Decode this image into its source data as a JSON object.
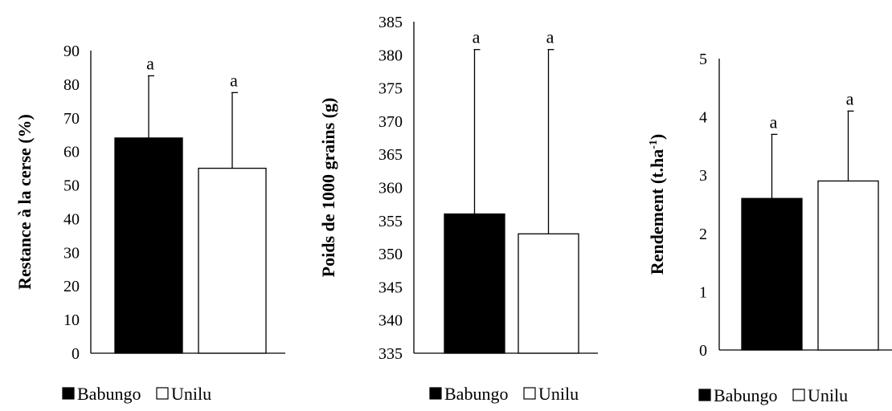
{
  "chart_data": [
    {
      "type": "bar",
      "ylabel": "Restance à la cerse (%)",
      "ylim": [
        0,
        90
      ],
      "yticks": [
        "0",
        "10",
        "20",
        "30",
        "40",
        "50",
        "60",
        "70",
        "80",
        "90"
      ],
      "grid": false,
      "legend_position": "bottom",
      "series": [
        {
          "name": "Babungo",
          "value": 64,
          "error": 18.5,
          "significance": "a",
          "color": "#000000"
        },
        {
          "name": "Unilu",
          "value": 55,
          "error": 22.5,
          "significance": "a",
          "color": "#ffffff"
        }
      ]
    },
    {
      "type": "bar",
      "ylabel": "Poids de 1000 grains (g)",
      "ylim": [
        335,
        385
      ],
      "yticks": [
        "335",
        "340",
        "345",
        "350",
        "355",
        "360",
        "365",
        "370",
        "375",
        "380",
        "385"
      ],
      "grid": false,
      "legend_position": "bottom",
      "series": [
        {
          "name": "Babungo",
          "value": 356,
          "error": 24.8,
          "significance": "a",
          "color": "#000000"
        },
        {
          "name": "Unilu",
          "value": 353,
          "error": 27.8,
          "significance": "a",
          "color": "#ffffff"
        }
      ]
    },
    {
      "type": "bar",
      "ylabel": "Rendement (t.ha",
      "ylabel_sup": "-1",
      "ylabel_end": ")",
      "ylim": [
        0,
        5
      ],
      "yticks": [
        "0",
        "1",
        "2",
        "3",
        "4",
        "5"
      ],
      "grid": false,
      "legend_position": "bottom",
      "series": [
        {
          "name": "Babungo",
          "value": 2.6,
          "error": 1.1,
          "significance": "a",
          "color": "#000000"
        },
        {
          "name": "Unilu",
          "value": 2.9,
          "error": 1.2,
          "significance": "a",
          "color": "#ffffff"
        }
      ]
    }
  ]
}
